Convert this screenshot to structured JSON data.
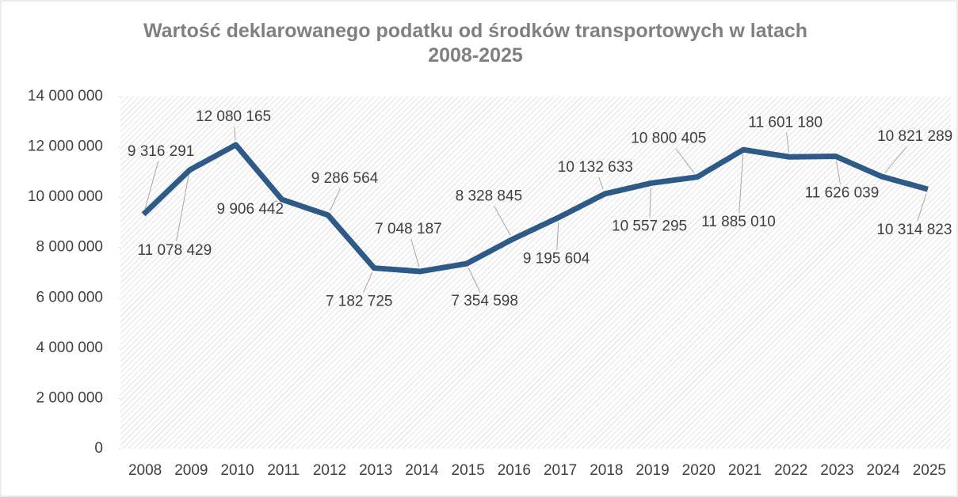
{
  "chart_data": {
    "type": "line",
    "title": "Wartość deklarowanego podatku od środków transportowych w latach 2008-2025",
    "categories": [
      "2008",
      "2009",
      "2010",
      "2011",
      "2012",
      "2013",
      "2014",
      "2015",
      "2016",
      "2017",
      "2018",
      "2019",
      "2020",
      "2021",
      "2022",
      "2023",
      "2024",
      "2025"
    ],
    "series": [
      {
        "name": "Wartość deklarowanego podatku",
        "color": "#2e5a87",
        "values": [
          9316291,
          11078429,
          12080165,
          9906442,
          9286564,
          7182725,
          7048187,
          7354598,
          8328845,
          9195604,
          10132633,
          10557295,
          10800405,
          11885010,
          11601180,
          11626039,
          10821289,
          10314823
        ],
        "value_labels": [
          "9 316 291",
          "11 078 429",
          "12 080 165",
          "9 906 442",
          "9 286 564",
          "7 182 725",
          "7 048 187",
          "7 354 598",
          "8 328 845",
          "9 195 604",
          "10 132 633",
          "10 557 295",
          "10 800 405",
          "11 885 010",
          "11 601 180",
          "11 626 039",
          "10 821 289",
          "10 314 823"
        ]
      }
    ],
    "ylim": [
      0,
      14000000
    ],
    "yticks": [
      0,
      {
        "value": 2000000,
        "label": "2 000 000"
      },
      {
        "value": 4000000,
        "label": "4 000 000"
      },
      {
        "value": 6000000,
        "label": "6 000 000"
      },
      {
        "value": 8000000,
        "label": "8 000 000"
      },
      {
        "value": 10000000,
        "label": "10 000 000"
      },
      {
        "value": 12000000,
        "label": "12 000 000"
      },
      {
        "value": 14000000,
        "label": "14 000 000"
      }
    ]
  }
}
